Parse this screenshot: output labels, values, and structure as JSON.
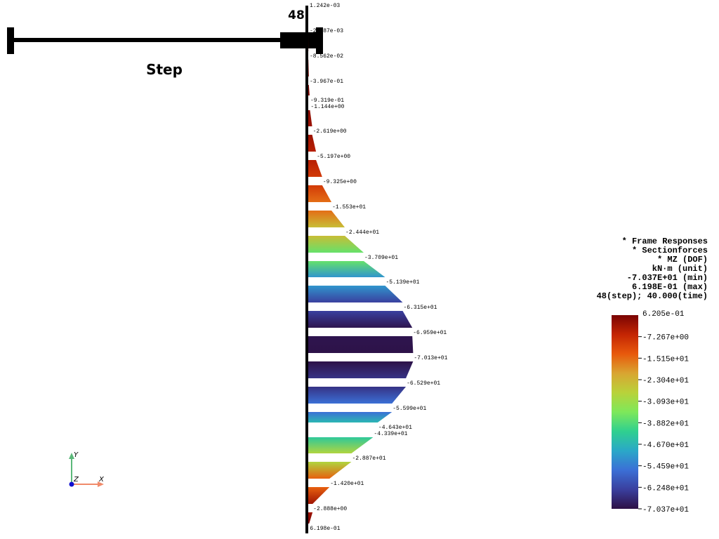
{
  "slider": {
    "value": "48",
    "title": "Step"
  },
  "diagram": {
    "labels": [
      "1.242e-03",
      "-2.487e-03",
      "-8.562e-02",
      "-3.967e-01",
      "-9.319e-01",
      "-1.144e+00",
      "-2.619e+00",
      "-5.197e+00",
      "-9.325e+00",
      "-1.553e+01",
      "-2.444e+01",
      "-3.709e+01",
      "-5.139e+01",
      "-6.315e+01",
      "-6.959e+01",
      "-7.013e+01",
      "-6.529e+01",
      "-5.599e+01",
      "-4.643e+01",
      "-4.339e+01",
      "-2.887e+01",
      "-1.420e+01",
      "-2.888e+00",
      "6.198e-01"
    ]
  },
  "legend": {
    "title_lines": [
      "* Frame Responses",
      "* Sectionforces",
      "* MZ (DOF)",
      "kN·m (unit)",
      "-7.037E+01 (min)",
      "6.198E-01 (max)",
      "48(step); 40.000(time)"
    ],
    "ticks": [
      "6.205e-01",
      "-7.267e+00",
      "-1.515e+01",
      "-2.304e+01",
      "-3.093e+01",
      "-3.882e+01",
      "-4.670e+01",
      "-5.459e+01",
      "-6.248e+01",
      "-7.037e+01"
    ]
  },
  "axes": {
    "y": "Y",
    "z": "Z",
    "x": "X"
  }
}
